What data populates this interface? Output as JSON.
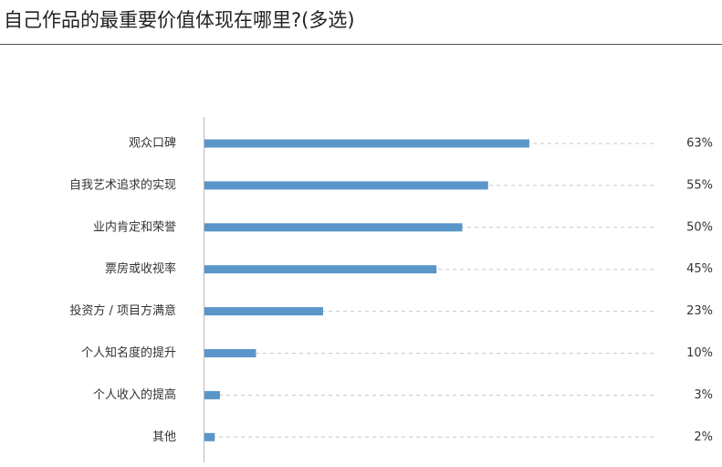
{
  "chart_data": {
    "type": "bar",
    "orientation": "horizontal",
    "title": "自己作品的最重要价值体现在哪里?(多选)",
    "categories": [
      "观众口碑",
      "自我艺术追求的实现",
      "业内肯定和荣誉",
      "票房或收视率",
      "投资方 / 项目方满意",
      "个人知名度的提升",
      "个人收入的提高",
      "其他"
    ],
    "values": [
      63,
      55,
      50,
      45,
      23,
      10,
      3,
      2
    ],
    "value_labels": [
      "63%",
      "55%",
      "50%",
      "45%",
      "23%",
      "10%",
      "3%",
      "2%"
    ],
    "color": "#5a96c9"
  }
}
